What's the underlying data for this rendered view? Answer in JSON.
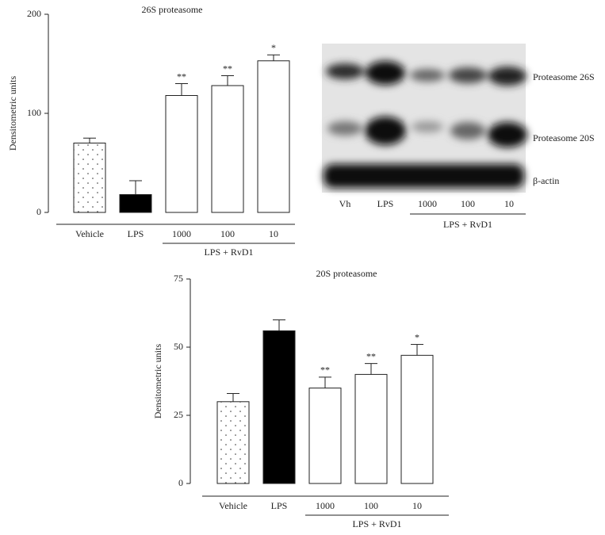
{
  "chart_data": [
    {
      "type": "bar",
      "title": "26S proteasome",
      "y_label": "Densitometric units",
      "categories": [
        "Vehicle",
        "LPS",
        "1000",
        "100",
        "10"
      ],
      "values": [
        70,
        18,
        118,
        128,
        153
      ],
      "errors": [
        5,
        14,
        12,
        10,
        6
      ],
      "annotations": [
        null,
        null,
        "**",
        "**",
        "*"
      ],
      "colors": [
        "dots",
        "#000000",
        "#ffffff",
        "#ffffff",
        "#ffffff"
      ],
      "group_label": "LPS + RvD1",
      "ylim": [
        0,
        200
      ],
      "yticks": [
        0,
        100,
        200
      ]
    },
    {
      "type": "bar",
      "title": "20S proteasome",
      "y_label": "Densitometric units",
      "categories": [
        "Vehicle",
        "LPS",
        "1000",
        "100",
        "10"
      ],
      "values": [
        30,
        56,
        35,
        40,
        47
      ],
      "errors": [
        3,
        4,
        4,
        4,
        4
      ],
      "annotations": [
        null,
        null,
        "**",
        "**",
        "*"
      ],
      "colors": [
        "dots",
        "#000000",
        "#ffffff",
        "#ffffff",
        "#ffffff"
      ],
      "group_label": "LPS + RvD1",
      "ylim": [
        0,
        75
      ],
      "yticks": [
        0,
        25,
        50,
        75
      ]
    }
  ],
  "blot": {
    "bands": [
      "Proteasome 26S",
      "Proteasome 20S",
      "β-actin"
    ],
    "lanes": [
      "Vh",
      "LPS",
      "1000",
      "100",
      "10"
    ],
    "group_label": "LPS + RvD1"
  }
}
